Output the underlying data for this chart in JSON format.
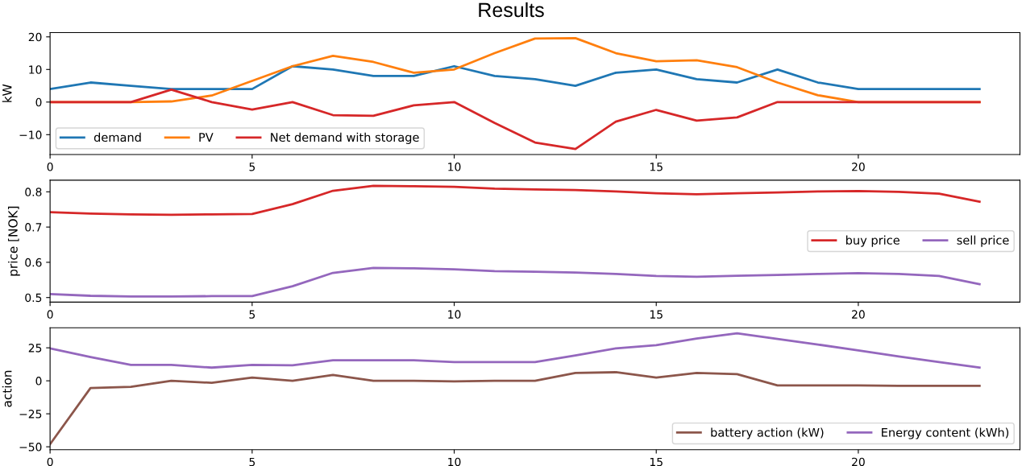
{
  "chart_data": [
    {
      "type": "line",
      "title": "Results",
      "ylabel": "kW",
      "x": [
        0,
        1,
        2,
        3,
        4,
        5,
        6,
        7,
        8,
        9,
        10,
        11,
        12,
        13,
        14,
        15,
        16,
        17,
        18,
        19,
        20,
        21,
        22,
        23
      ],
      "xlim": [
        0,
        24
      ],
      "xticks": [
        0,
        5,
        10,
        15,
        20
      ],
      "ylim": [
        -16.1,
        21.3
      ],
      "yticks": [
        {
          "value": -10,
          "label": "−10"
        },
        0,
        10,
        20
      ],
      "grid": false,
      "legend": "bottom left",
      "marker": "none",
      "line_style": "solid",
      "series": [
        {
          "name": "demand",
          "color": "#1f77b4",
          "values": [
            4,
            6,
            5,
            4,
            4,
            4,
            11,
            10,
            8,
            8,
            11,
            8,
            7,
            5,
            9,
            10,
            7,
            6,
            10,
            6,
            4,
            4,
            4,
            4
          ]
        },
        {
          "name": "PV",
          "color": "#ff7f0e",
          "values": [
            0,
            0,
            0,
            0.2,
            2,
            6.5,
            11,
            14.2,
            12.3,
            9,
            10,
            15,
            19.5,
            19.6,
            15,
            12.5,
            12.8,
            10.7,
            6,
            2.1,
            0,
            0,
            0,
            0
          ]
        },
        {
          "name": "Net demand with storage",
          "color": "#d62728",
          "values": [
            0,
            0,
            0,
            3.8,
            0,
            -2.3,
            0,
            -4,
            -4.2,
            -1,
            0,
            -6.4,
            -12.4,
            -14.4,
            -6,
            -2.4,
            -5.7,
            -4.7,
            0,
            0,
            0,
            0,
            0,
            0
          ]
        }
      ]
    },
    {
      "type": "line",
      "ylabel": "price [NOK]",
      "x": [
        0,
        1,
        2,
        3,
        4,
        5,
        6,
        7,
        8,
        9,
        10,
        11,
        12,
        13,
        14,
        15,
        16,
        17,
        18,
        19,
        20,
        21,
        22,
        23
      ],
      "xlim": [
        0,
        24
      ],
      "xticks": [
        0,
        5,
        10,
        15,
        20
      ],
      "ylim": [
        0.487,
        0.833
      ],
      "yticks": [
        0.5,
        0.6,
        0.7,
        0.8
      ],
      "grid": false,
      "legend": "right",
      "marker": "none",
      "line_style": "solid",
      "series": [
        {
          "name": "buy price",
          "color": "#d62728",
          "values": [
            0.742,
            0.738,
            0.736,
            0.735,
            0.736,
            0.737,
            0.765,
            0.803,
            0.817,
            0.816,
            0.814,
            0.809,
            0.807,
            0.805,
            0.801,
            0.796,
            0.793,
            0.796,
            0.798,
            0.801,
            0.802,
            0.8,
            0.795,
            0.772
          ]
        },
        {
          "name": "sell price",
          "color": "#9467bd",
          "values": [
            0.51,
            0.505,
            0.503,
            0.503,
            0.504,
            0.504,
            0.532,
            0.57,
            0.584,
            0.583,
            0.58,
            0.575,
            0.573,
            0.571,
            0.567,
            0.561,
            0.559,
            0.562,
            0.564,
            0.567,
            0.569,
            0.567,
            0.561,
            0.538
          ]
        }
      ]
    },
    {
      "type": "line",
      "ylabel": "action",
      "x": [
        0,
        1,
        2,
        3,
        4,
        5,
        6,
        7,
        8,
        9,
        10,
        11,
        12,
        13,
        14,
        15,
        16,
        17,
        18,
        19,
        20,
        21,
        22,
        23
      ],
      "xlim": [
        0,
        24
      ],
      "xticks": [
        0,
        5,
        10,
        15,
        20
      ],
      "ylim": [
        -52.2,
        40.2
      ],
      "yticks": [
        {
          "value": -50,
          "label": "−50"
        },
        {
          "value": -25,
          "label": "−25"
        },
        0,
        25
      ],
      "grid": false,
      "legend": "bottom right",
      "marker": "none",
      "line_style": "solid",
      "series": [
        {
          "name": "battery action (kW)",
          "color": "#8c564b",
          "values": [
            -48,
            -5.5,
            -4.5,
            0,
            -1.5,
            2.5,
            0,
            4.5,
            0,
            0,
            -0.5,
            0,
            0,
            6,
            6.5,
            2.5,
            6,
            5,
            -3.5,
            -3.5,
            -3.5,
            -3.8,
            -3.8,
            -3.8
          ]
        },
        {
          "name": "Energy content (kWh)",
          "color": "#9467bd",
          "values": [
            24.6,
            18,
            12,
            12,
            10,
            12,
            11.8,
            15.5,
            15.5,
            15.5,
            14.2,
            14.2,
            14.2,
            19.2,
            24.6,
            27,
            32,
            36,
            31.8,
            27.5,
            23,
            18.5,
            14.2,
            10
          ]
        }
      ]
    }
  ]
}
